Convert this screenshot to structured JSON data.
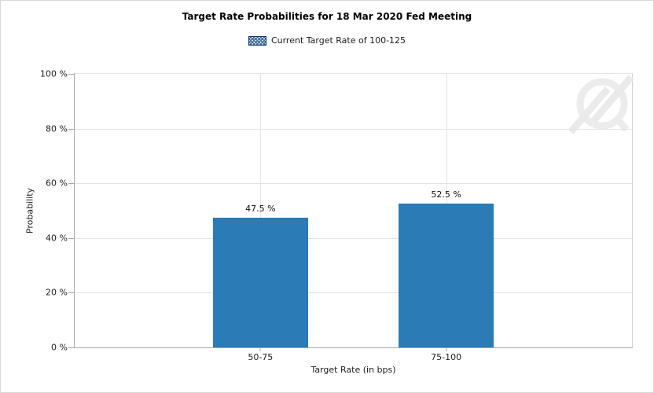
{
  "chart_data": {
    "type": "bar",
    "title": "Target Rate Probabilities for 18 Mar 2020 Fed Meeting",
    "legend": {
      "position": "top-center",
      "entries": [
        {
          "label": "Current Target Rate of 100-125",
          "swatch_icon": "blue-crosshatch-swatch-icon"
        }
      ]
    },
    "categories": [
      "50-75",
      "75-100"
    ],
    "series": [
      {
        "name": "Current Target Rate of 100-125",
        "values": [
          47.5,
          52.5
        ]
      }
    ],
    "value_labels": [
      "47.5 %",
      "52.5 %"
    ],
    "xlabel": "Target Rate (in bps)",
    "ylabel": "Probability",
    "ylim": [
      0,
      100
    ],
    "ytick_labels": [
      "100 %",
      "80 %",
      "60 %",
      "40 %",
      "20 %",
      "0 %"
    ],
    "grid": true,
    "watermark_icon": "circle-lightning-bolt-logo",
    "colors": {
      "bar_fill": "#2b7bb6",
      "gridline": "#e3e3e3",
      "axis_line": "#a8a8a8",
      "canvas_border": "#d8d8d8",
      "legend_swatch_border": "#17365d",
      "legend_swatch_blue": "#35699f",
      "watermark": "#ececec",
      "text": "#1c1c1c"
    }
  }
}
